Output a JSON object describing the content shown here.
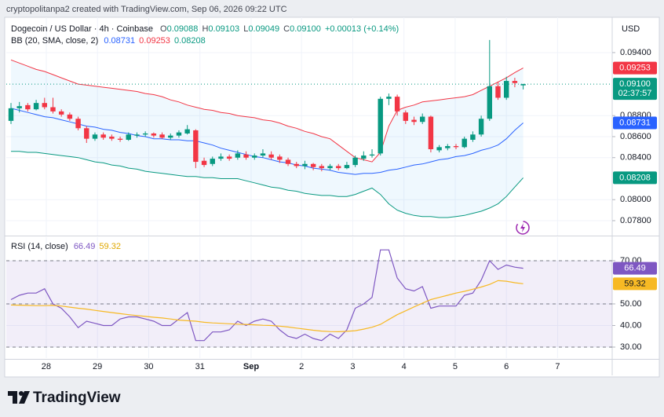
{
  "header": "cryptopolitanpa2 created with TradingView.com, Sep 06, 2026 09:22 UTC",
  "branding": "TradingView",
  "chart_data": [
    {
      "type": "candlestick",
      "title": "Dogecoin / US Dollar · 4h · Coinbase",
      "currency": "USD",
      "ohlc_letters": [
        "O",
        "H",
        "L",
        "C"
      ],
      "change": "+0.00013 (+0.14%)",
      "indicator": "BB (20, SMA, close, 2)",
      "candles": {
        "open": [
          0.0875,
          0.0887,
          0.089,
          0.0886,
          0.0892,
          0.0888,
          0.0884,
          0.0881,
          0.0877,
          0.0868,
          0.0858,
          0.0862,
          0.086,
          0.0858,
          0.0857,
          0.0861,
          0.0862,
          0.0863,
          0.0862,
          0.0859,
          0.0861,
          0.0863,
          0.0866,
          0.0837,
          0.0834,
          0.0839,
          0.0841,
          0.084,
          0.0843,
          0.084,
          0.0842,
          0.0843,
          0.0841,
          0.0838,
          0.0834,
          0.0832,
          0.0834,
          0.0832,
          0.083,
          0.0832,
          0.083,
          0.0833,
          0.0839,
          0.0842,
          0.0844,
          0.0896,
          0.0898,
          0.0883,
          0.0876,
          0.0874,
          0.0879,
          0.0847,
          0.0849,
          0.0851,
          0.085,
          0.0857,
          0.0862,
          0.0877,
          0.0908,
          0.0897,
          0.0913,
          0.09088
        ],
        "high": [
          0.0892,
          0.0893,
          0.0892,
          0.0895,
          0.0897,
          0.0897,
          0.0886,
          0.0883,
          0.0879,
          0.087,
          0.0864,
          0.0864,
          0.0862,
          0.086,
          0.0864,
          0.0864,
          0.0865,
          0.0864,
          0.0864,
          0.0863,
          0.0866,
          0.0871,
          0.0867,
          0.084,
          0.0841,
          0.0844,
          0.0843,
          0.0847,
          0.0846,
          0.0844,
          0.0848,
          0.0846,
          0.0843,
          0.084,
          0.0836,
          0.0837,
          0.0835,
          0.0834,
          0.0834,
          0.0834,
          0.0836,
          0.0842,
          0.0846,
          0.0848,
          0.0898,
          0.0901,
          0.09,
          0.0885,
          0.0879,
          0.0882,
          0.088,
          0.0852,
          0.0853,
          0.0853,
          0.086,
          0.0865,
          0.088,
          0.0952,
          0.0912,
          0.0917,
          0.0916,
          0.09103
        ],
        "low": [
          0.0872,
          0.0883,
          0.0884,
          0.0885,
          0.0886,
          0.0882,
          0.0879,
          0.0875,
          0.0866,
          0.0854,
          0.0856,
          0.0857,
          0.0856,
          0.0855,
          0.0856,
          0.0859,
          0.086,
          0.0859,
          0.0858,
          0.0857,
          0.0859,
          0.0862,
          0.083,
          0.0831,
          0.0832,
          0.0837,
          0.0837,
          0.0838,
          0.0838,
          0.0838,
          0.084,
          0.0838,
          0.0835,
          0.0832,
          0.083,
          0.0829,
          0.0828,
          0.0827,
          0.0828,
          0.0828,
          0.0829,
          0.0831,
          0.0837,
          0.084,
          0.0842,
          0.089,
          0.088,
          0.0872,
          0.0871,
          0.0872,
          0.0845,
          0.0845,
          0.0847,
          0.0848,
          0.0849,
          0.0855,
          0.086,
          0.0875,
          0.0895,
          0.0895,
          0.0907,
          0.09049
        ],
        "close": [
          0.0887,
          0.0889,
          0.0886,
          0.0892,
          0.0888,
          0.0884,
          0.0881,
          0.0877,
          0.0868,
          0.0858,
          0.0862,
          0.0859,
          0.0858,
          0.0857,
          0.0862,
          0.0862,
          0.0863,
          0.0861,
          0.0859,
          0.0861,
          0.0864,
          0.0867,
          0.0836,
          0.0833,
          0.0839,
          0.0841,
          0.0839,
          0.0844,
          0.084,
          0.0842,
          0.0844,
          0.084,
          0.0838,
          0.0834,
          0.0832,
          0.0834,
          0.0831,
          0.083,
          0.0832,
          0.083,
          0.0833,
          0.084,
          0.0842,
          0.0843,
          0.0896,
          0.0898,
          0.0884,
          0.0875,
          0.0874,
          0.0879,
          0.0848,
          0.085,
          0.0851,
          0.085,
          0.0858,
          0.0862,
          0.0877,
          0.0908,
          0.0897,
          0.0913,
          0.0911,
          0.091
        ]
      },
      "up_color": "#089981",
      "down_color": "#f23645",
      "close_label": "0.09100",
      "countdown": "02:37:57",
      "series": [
        {
          "color": "#2962ff",
          "values": [
            0.0887,
            0.0885,
            0.0883,
            0.0881,
            0.0879,
            0.0878,
            0.0876,
            0.0874,
            0.0872,
            0.087,
            0.0869,
            0.0867,
            0.0866,
            0.0864,
            0.0863,
            0.0861,
            0.086,
            0.0858,
            0.0858,
            0.0857,
            0.0857,
            0.0856,
            0.0856,
            0.0854,
            0.0852,
            0.0849,
            0.0847,
            0.0845,
            0.0843,
            0.0841,
            0.084,
            0.0838,
            0.0836,
            0.0835,
            0.0833,
            0.0832,
            0.083,
            0.0829,
            0.0828,
            0.0826,
            0.0825,
            0.0824,
            0.0825,
            0.0825,
            0.0826,
            0.0828,
            0.0829,
            0.0831,
            0.0833,
            0.0834,
            0.0836,
            0.0838,
            0.0839,
            0.0841,
            0.0842,
            0.0844,
            0.0847,
            0.0849,
            0.0852,
            0.0858,
            0.0866,
            0.08731
          ]
        },
        {
          "color": "#f23645",
          "values": [
            0.0933,
            0.093,
            0.0927,
            0.0924,
            0.0922,
            0.0919,
            0.0916,
            0.0913,
            0.091,
            0.0909,
            0.0908,
            0.0907,
            0.0906,
            0.0905,
            0.0904,
            0.0903,
            0.0901,
            0.09,
            0.0898,
            0.0895,
            0.0893,
            0.089,
            0.0888,
            0.0886,
            0.0885,
            0.0883,
            0.0882,
            0.088,
            0.0879,
            0.0878,
            0.0876,
            0.0875,
            0.0873,
            0.087,
            0.0868,
            0.0865,
            0.0863,
            0.086,
            0.0858,
            0.0852,
            0.0846,
            0.084,
            0.0838,
            0.0836,
            0.0845,
            0.087,
            0.0885,
            0.0888,
            0.089,
            0.0893,
            0.0894,
            0.0895,
            0.0896,
            0.0897,
            0.0898,
            0.09,
            0.0904,
            0.0908,
            0.0912,
            0.0916,
            0.0921,
            0.09253
          ]
        },
        {
          "color": "#089981",
          "values": [
            0.0846,
            0.0846,
            0.0845,
            0.0845,
            0.0844,
            0.0843,
            0.0842,
            0.0841,
            0.084,
            0.0838,
            0.0836,
            0.0835,
            0.0833,
            0.0832,
            0.083,
            0.0829,
            0.0827,
            0.0826,
            0.0825,
            0.0824,
            0.0823,
            0.0822,
            0.0822,
            0.0821,
            0.0821,
            0.082,
            0.082,
            0.082,
            0.0818,
            0.0816,
            0.0814,
            0.0812,
            0.0811,
            0.0809,
            0.0808,
            0.0806,
            0.0805,
            0.0804,
            0.0804,
            0.0803,
            0.0803,
            0.0805,
            0.0808,
            0.0811,
            0.0805,
            0.0796,
            0.079,
            0.0787,
            0.0785,
            0.0784,
            0.0784,
            0.0783,
            0.0783,
            0.0784,
            0.0785,
            0.0787,
            0.0789,
            0.0792,
            0.0796,
            0.0803,
            0.0812,
            0.08208
          ]
        }
      ],
      "band_color": "#2196f3",
      "xlim": [
        -0.56,
        71.6
      ],
      "xticks": [
        {
          "value": 4.2,
          "label": "28"
        },
        {
          "value": 10.3,
          "label": "29"
        },
        {
          "value": 16.4,
          "label": "30"
        },
        {
          "value": 22.5,
          "label": "31"
        },
        {
          "value": 28.6,
          "label": "Sep"
        },
        {
          "value": 34.6,
          "label": "2"
        },
        {
          "value": 40.7,
          "label": "3"
        },
        {
          "value": 46.8,
          "label": "4"
        },
        {
          "value": 52.9,
          "label": "5"
        },
        {
          "value": 59.0,
          "label": "6"
        },
        {
          "value": 65.1,
          "label": "7"
        }
      ],
      "ylim": [
        0.07658,
        0.09736
      ],
      "yticks": [
        {
          "value": 0.094,
          "label": "0.09400"
        },
        {
          "value": 0.088,
          "label": "0.08800"
        },
        {
          "value": 0.086,
          "label": "0.08600"
        },
        {
          "value": 0.084,
          "label": "0.08400"
        },
        {
          "value": 0.08,
          "label": "0.08000"
        },
        {
          "value": 0.078,
          "label": "0.07800"
        }
      ],
      "grid": true
    },
    {
      "type": "line",
      "title": "RSI (14, close)",
      "series": [
        {
          "color": "#7e57c2",
          "values": [
            52,
            54,
            55,
            55,
            57,
            50,
            48,
            44,
            39,
            42,
            41,
            40,
            40,
            43,
            44,
            44,
            43,
            42,
            40,
            40,
            43,
            46,
            33,
            33,
            37,
            37,
            38,
            42,
            40,
            42,
            43,
            42,
            38,
            35,
            34,
            36,
            34,
            33,
            36,
            34,
            38,
            48,
            50,
            53,
            75,
            75,
            62,
            57,
            56,
            58,
            48,
            49,
            49,
            49,
            54,
            55,
            61,
            70,
            66,
            68,
            67,
            66.49
          ]
        },
        {
          "color": "#f7b924",
          "values": [
            49.5,
            49.4,
            49.3,
            49.2,
            49.2,
            49.3,
            49.0,
            48.5,
            48.0,
            47.6,
            47.0,
            46.5,
            46.0,
            45.5,
            45.0,
            44.6,
            44.2,
            43.8,
            43.5,
            43.0,
            42.5,
            42.2,
            42.0,
            41.5,
            41.2,
            41.0,
            40.8,
            40.6,
            40.5,
            40.3,
            40.1,
            40.0,
            39.7,
            39.3,
            38.8,
            38.3,
            37.8,
            37.4,
            37.2,
            37.1,
            37.3,
            37.6,
            38.3,
            39.2,
            40.5,
            42.8,
            45.0,
            46.8,
            48.6,
            50.3,
            52.0,
            53.0,
            54.0,
            55.0,
            55.8,
            56.8,
            57.8,
            59.0,
            60.8,
            60.5,
            59.8,
            59.32
          ]
        }
      ],
      "ylim": [
        24.9,
        80.9
      ],
      "yticks": [
        {
          "value": 30,
          "label": "30.00"
        },
        {
          "value": 40,
          "label": "40.00"
        },
        {
          "value": 50,
          "label": "50.00"
        },
        {
          "value": 70,
          "label": "70.00"
        }
      ],
      "levels": [
        30,
        50,
        70
      ],
      "band": [
        30,
        70
      ],
      "band_color": "#7e57c2",
      "grid": true
    }
  ]
}
